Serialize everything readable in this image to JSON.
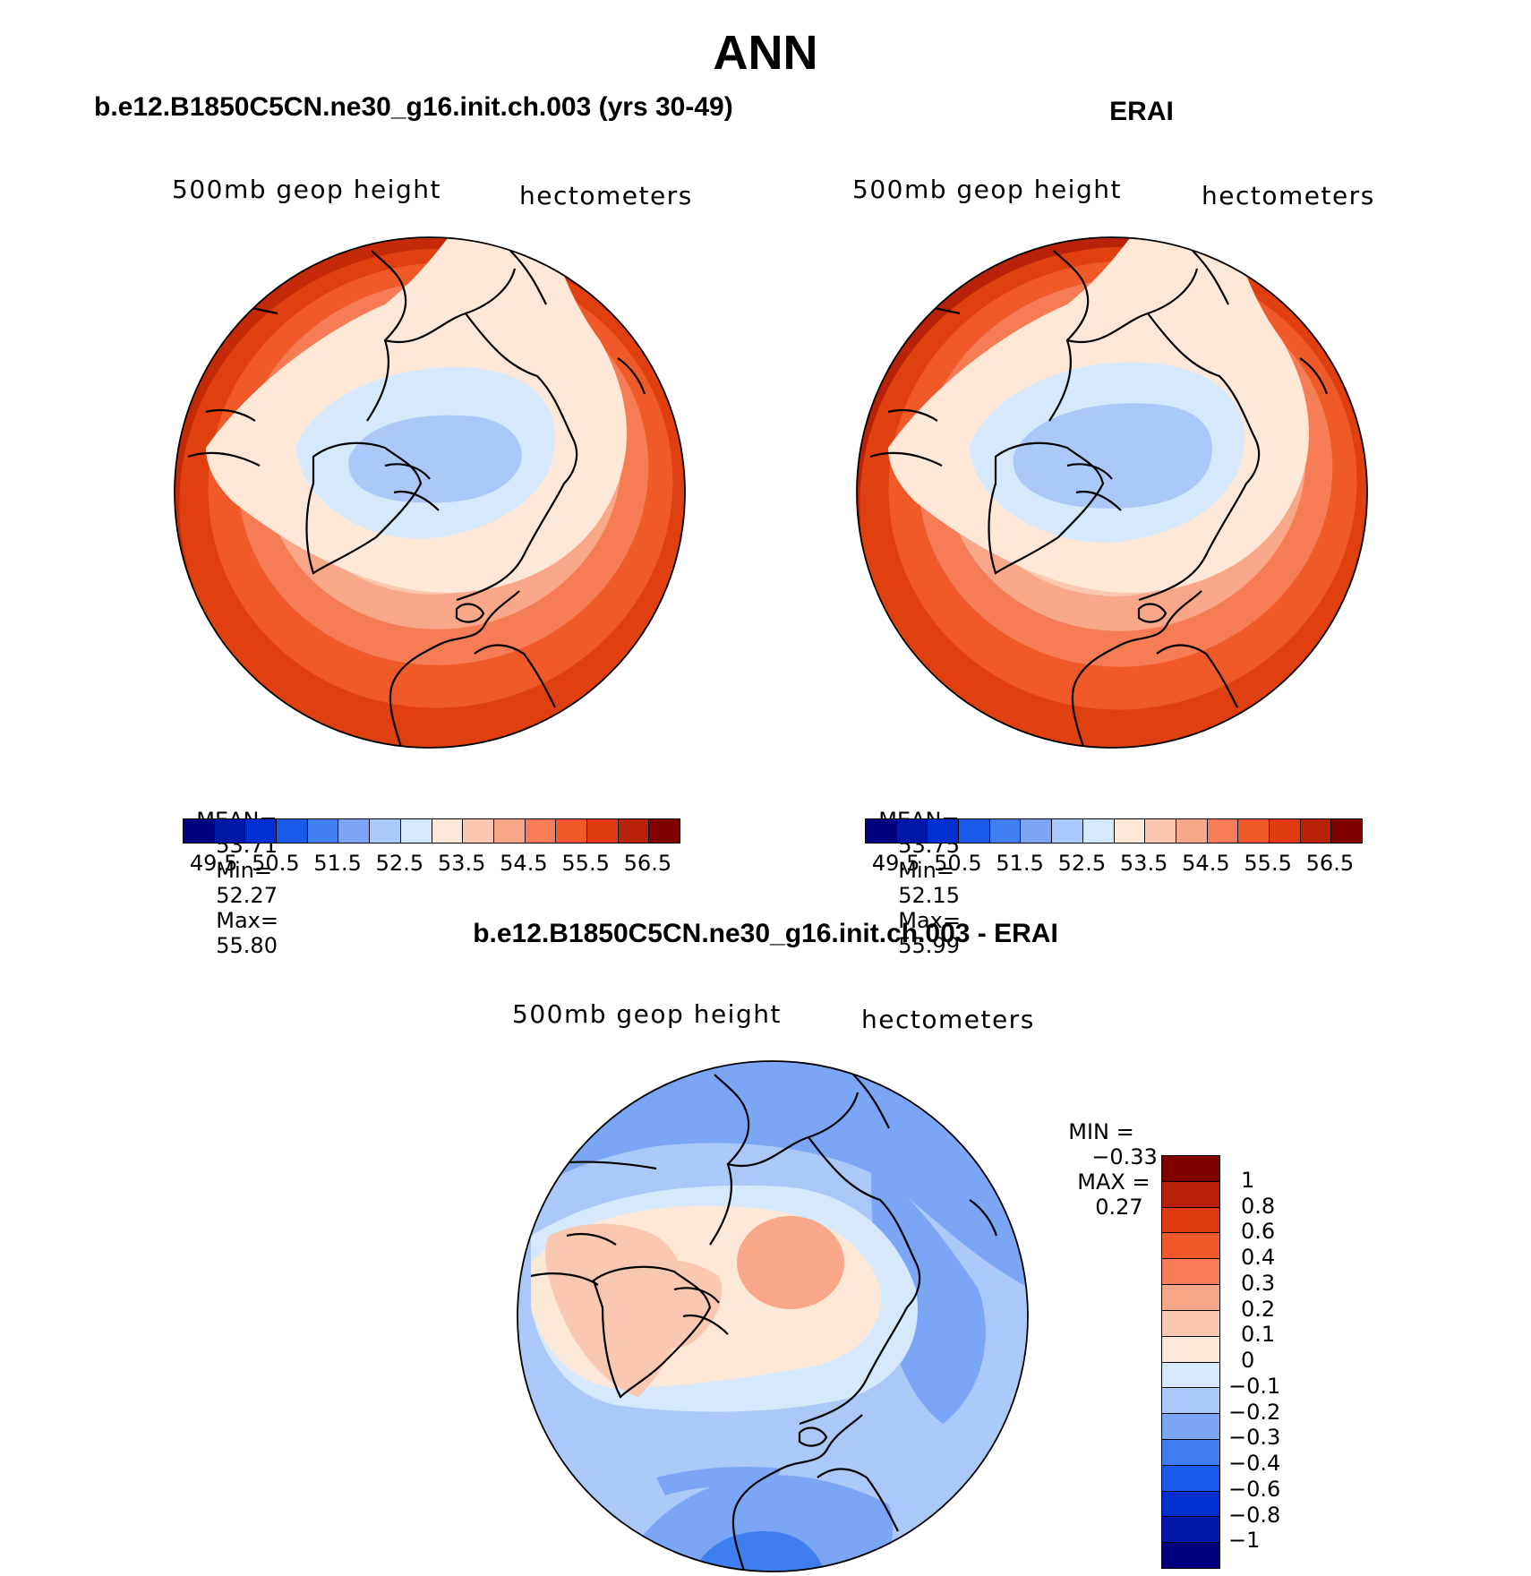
{
  "figure": {
    "title": "ANN",
    "panel1_title": "b.e12.B1850C5CN.ne30_g16.init.ch.003 (yrs 30-49)",
    "panel2_title": "ERAI",
    "panel3_title": "b.e12.B1850C5CN.ne30_g16.init.ch.003 - ERAI"
  },
  "panels": [
    {
      "variable": "500mb geop height",
      "units": "hectometers",
      "mean_label": "MEAN=",
      "mean": "53.71",
      "min_label": "Min=",
      "min": "52.27",
      "max_label": "Max=",
      "max": "55.80",
      "contour_levels": [
        52.5,
        53.0,
        53.5,
        54.0,
        54.5,
        55.0,
        55.5,
        56.0
      ]
    },
    {
      "variable": "500mb geop height",
      "units": "hectometers",
      "mean_label": "MEAN=",
      "mean": "53.75",
      "min_label": "Min=",
      "min": "52.15",
      "max_label": "Max=",
      "max": "55.99",
      "contour_levels": [
        52.5,
        53.0,
        53.5,
        54.0,
        54.5,
        55.0,
        55.5,
        56.0
      ]
    },
    {
      "variable": "500mb geop height",
      "units": "hectometers",
      "min_label": "MIN =",
      "min": "−0.33",
      "max_label": "MAX =",
      "max": "0.27",
      "diff_levels": [
        -0.3,
        -0.2,
        -0.1,
        0,
        0.1,
        0.2,
        0.3
      ]
    }
  ],
  "colorbar_abs": {
    "colors": [
      "#00007f",
      "#0018a8",
      "#0030d0",
      "#1a5ae8",
      "#3e7ef0",
      "#7aa6f5",
      "#aac8f8",
      "#d6e8fb",
      "#fde8d8",
      "#fac8b0",
      "#f8a888",
      "#f57c55",
      "#f05a2a",
      "#e03a10",
      "#b82208",
      "#800000"
    ],
    "tick_labels": [
      "49.5",
      "50.5",
      "51.5",
      "52.5",
      "53.5",
      "54.5",
      "55.5",
      "56.5"
    ]
  },
  "colorbar_diff": {
    "colors": [
      "#00007f",
      "#0018a8",
      "#0030d0",
      "#1a5ae8",
      "#3e7ef0",
      "#7aa6f5",
      "#aac8f8",
      "#d6e8fb",
      "#fde8d8",
      "#fac8b0",
      "#f8a888",
      "#f57c55",
      "#f05a2a",
      "#e03a10",
      "#b82208",
      "#800000"
    ],
    "tick_labels": [
      "1",
      "0.8",
      "0.6",
      "0.4",
      "0.3",
      "0.2",
      "0.1",
      "0",
      "−0.1",
      "−0.2",
      "−0.3",
      "−0.4",
      "−0.6",
      "−0.8",
      "−1"
    ]
  }
}
